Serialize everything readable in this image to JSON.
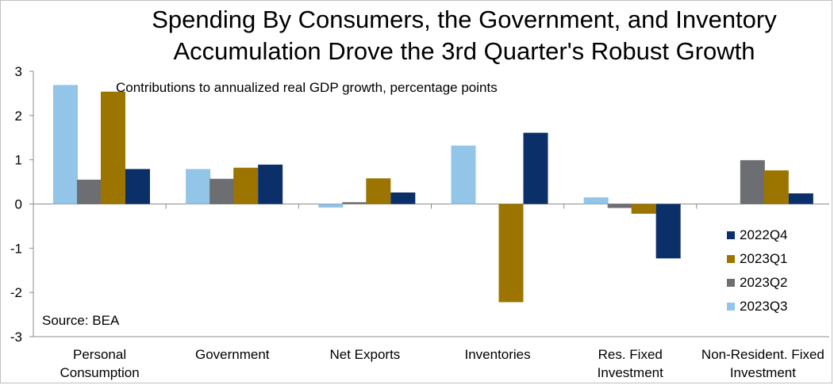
{
  "chart_data": {
    "type": "bar",
    "title_lines": [
      "Spending By Consumers, the Government, and Inventory",
      "Accumulation Drove the 3rd Quarter's Robust Growth"
    ],
    "subtitle": "Contributions to annualized real GDP growth, percentage points",
    "source": "Source: BEA",
    "categories": [
      [
        "Personal",
        "Consumption"
      ],
      [
        "Government"
      ],
      [
        "Net Exports"
      ],
      [
        "Inventories"
      ],
      [
        "Res. Fixed",
        "Investment"
      ],
      [
        "Non-Resident. Fixed",
        "Investment"
      ]
    ],
    "series": [
      {
        "name": "2023Q3",
        "color": "#92c5e8",
        "values": [
          2.69,
          0.79,
          -0.08,
          1.32,
          0.15,
          0.0
        ]
      },
      {
        "name": "2023Q2",
        "color": "#6d6e71",
        "values": [
          0.55,
          0.57,
          0.04,
          0.0,
          -0.09,
          0.99
        ]
      },
      {
        "name": "2023Q1",
        "color": "#9c7400",
        "values": [
          2.54,
          0.82,
          0.58,
          -2.22,
          -0.22,
          0.76
        ]
      },
      {
        "name": "2022Q4",
        "color": "#0b2f69",
        "values": [
          0.79,
          0.89,
          0.26,
          1.61,
          -1.23,
          0.24
        ]
      }
    ],
    "legend_order": [
      "2022Q4",
      "2023Q1",
      "2023Q2",
      "2023Q3"
    ],
    "ylim": [
      -3,
      3
    ],
    "yticks": [
      "3",
      "2",
      "1",
      "0",
      "-1",
      "-2",
      "-3"
    ],
    "xlabel": "",
    "ylabel": ""
  }
}
